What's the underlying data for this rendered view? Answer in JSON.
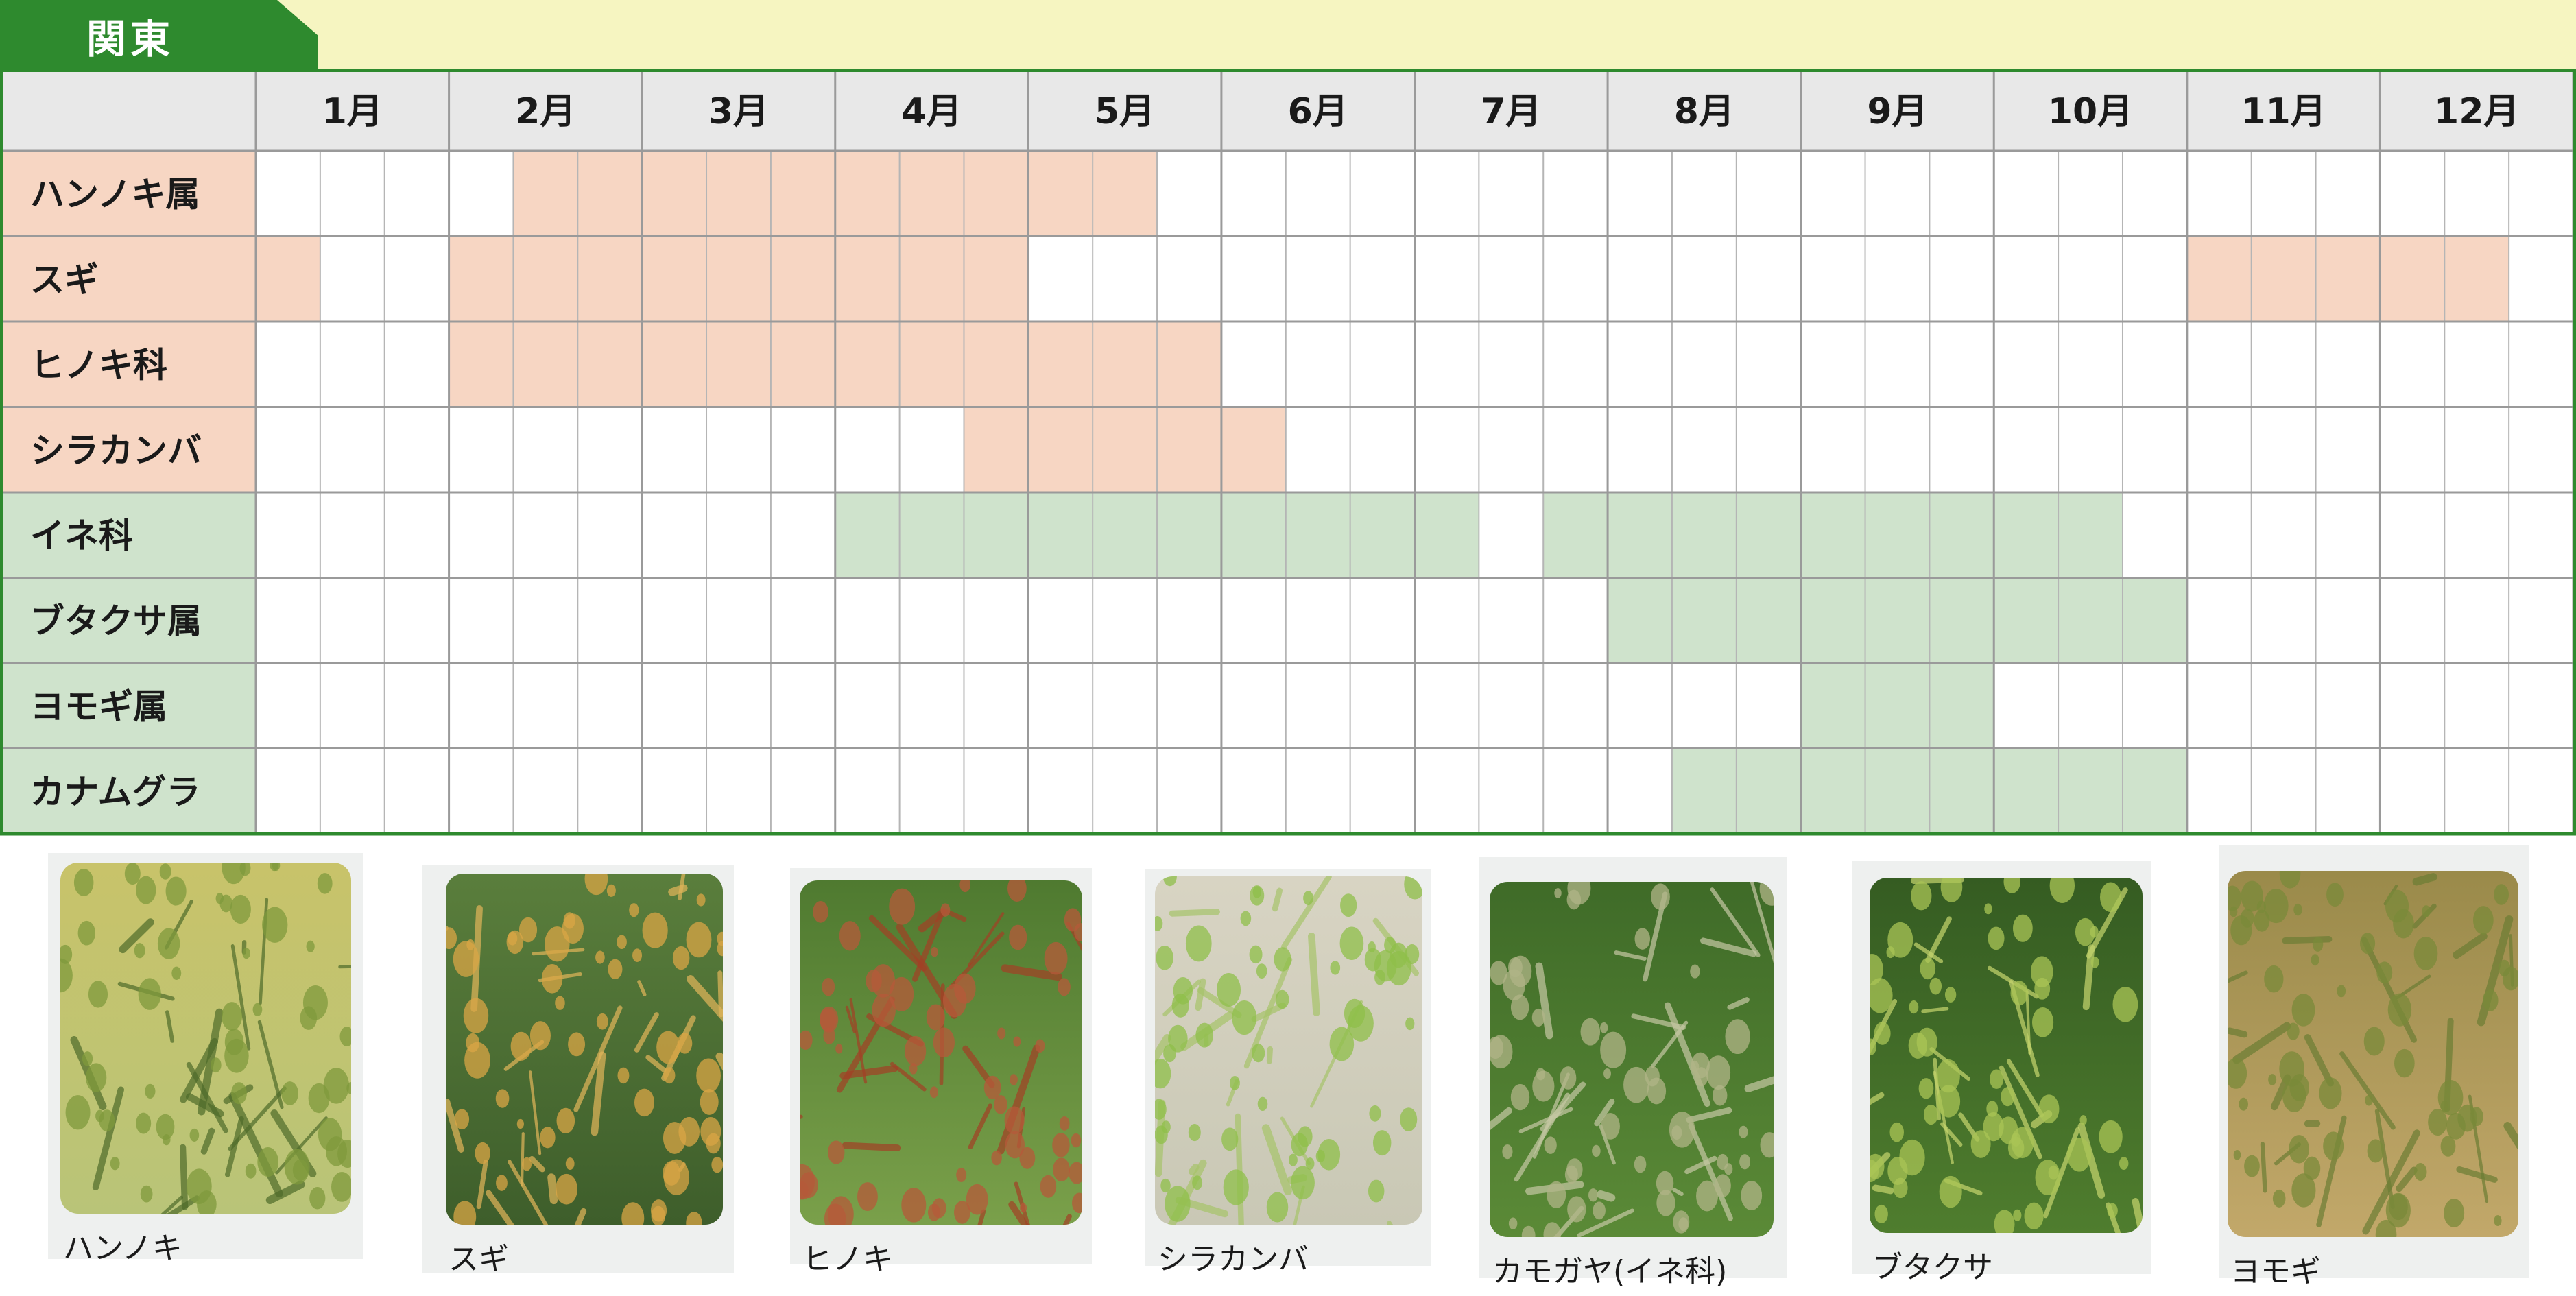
{
  "region": {
    "label": "関東",
    "tab_color": "#2e8a2e",
    "band_color": "#f6f5c1"
  },
  "chart_data": {
    "type": "table",
    "months": [
      "1月",
      "2月",
      "3月",
      "4月",
      "5月",
      "6月",
      "7月",
      "8月",
      "9月",
      "10月",
      "11月",
      "12月"
    ],
    "periods_per_month": 3,
    "colors": {
      "tree_label_bg": "#f7d6c3",
      "tree_fill": "#f7d6c3",
      "grass_label_bg": "#cfe3cc",
      "grass_fill": "#cfe3cc",
      "header_bg": "#e8e8e8",
      "grid_line": "#b5b5b5",
      "month_line": "#9a9a9a",
      "border": "#2e8a2e"
    },
    "rows": [
      {
        "name": "ハンノキ属",
        "group": "tree",
        "active": [
          [
            4,
            13
          ]
        ]
      },
      {
        "name": "スギ",
        "group": "tree",
        "active": [
          [
            0,
            0
          ],
          [
            3,
            11
          ],
          [
            30,
            34
          ]
        ]
      },
      {
        "name": "ヒノキ科",
        "group": "tree",
        "active": [
          [
            3,
            14
          ]
        ]
      },
      {
        "name": "シラカンバ",
        "group": "tree",
        "active": [
          [
            11,
            15
          ]
        ]
      },
      {
        "name": "イネ科",
        "group": "grass",
        "active": [
          [
            9,
            18
          ],
          [
            20,
            28
          ]
        ]
      },
      {
        "name": "ブタクサ属",
        "group": "grass",
        "active": [
          [
            21,
            29
          ]
        ]
      },
      {
        "name": "ヨモギ属",
        "group": "grass",
        "active": [
          [
            24,
            26
          ]
        ]
      },
      {
        "name": "カナムグラ",
        "group": "grass",
        "active": [
          [
            22,
            29
          ]
        ]
      }
    ]
  },
  "photos": [
    {
      "caption": "ハンノキ",
      "palette": [
        "#c8c36a",
        "#7f9a3c",
        "#b9c478",
        "#4e6b2a"
      ]
    },
    {
      "caption": "スギ",
      "palette": [
        "#5a7e3c",
        "#d9a545",
        "#3e5e2b",
        "#e3b65a"
      ]
    },
    {
      "caption": "ヒノキ",
      "palette": [
        "#4f7a30",
        "#b55a3a",
        "#7aa04a",
        "#a34025"
      ]
    },
    {
      "caption": "シラカンバ",
      "palette": [
        "#d8d4c3",
        "#8fbf4a",
        "#c9c8b5",
        "#a7c46a"
      ]
    },
    {
      "caption": "カモガヤ(イネ科)",
      "palette": [
        "#3f6b28",
        "#b0b487",
        "#5b8a37",
        "#c6c8a4"
      ]
    },
    {
      "caption": "ブタクサ",
      "palette": [
        "#355c22",
        "#a9c456",
        "#4f7d2e",
        "#c7d66e"
      ]
    },
    {
      "caption": "ヨモギ",
      "palette": [
        "#9a8a4a",
        "#7a8a3a",
        "#c2a86a",
        "#6b7d34"
      ]
    }
  ]
}
